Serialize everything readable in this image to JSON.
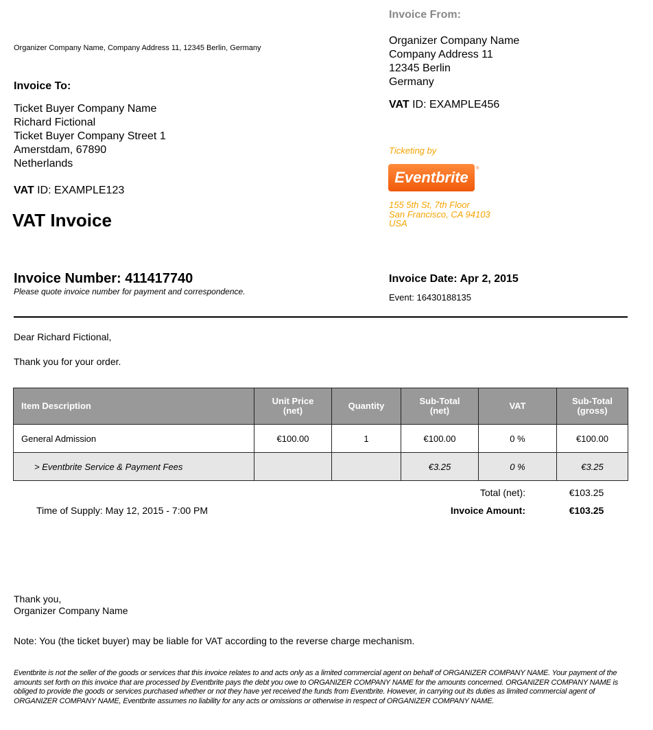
{
  "organizer_line": "Organizer Company Name, Company Address 11, 12345 Berlin, Germany",
  "from": {
    "title": "Invoice From:",
    "lines": [
      "Organizer Company Name",
      "Company Address 11",
      "12345 Berlin",
      "Germany"
    ],
    "vat_label": "VAT",
    "vat_value": " ID: EXAMPLE456"
  },
  "ticketing": {
    "label": "Ticketing by",
    "logo": "Eventbrite",
    "address": [
      "155 5th St, 7th Floor",
      "San Francisco, CA 94103",
      "USA"
    ],
    "color": "#f5a300"
  },
  "to": {
    "title": "Invoice To:",
    "lines": [
      "Ticket Buyer Company Name",
      "Richard Fictional",
      "Ticket Buyer Company Street 1",
      "Amerstdam, 67890",
      "Netherlands"
    ],
    "vat_label": "VAT",
    "vat_value": " ID: EXAMPLE123"
  },
  "doc_title": "VAT Invoice",
  "invoice_number": "Invoice Number: 411417740",
  "invoice_note": "Please quote invoice number for payment and correspondence.",
  "invoice_date": "Invoice Date: Apr 2, 2015",
  "event": "Event: 16430188135",
  "greeting": "Dear Richard Fictional,",
  "thanks_order": "Thank you for your order.",
  "table": {
    "headers": [
      "Item Description",
      "Unit Price\n(net)",
      "Quantity",
      "Sub-Total\n(net)",
      "VAT",
      "Sub-Total\n(gross)"
    ],
    "header_lines": [
      [
        "Item Description"
      ],
      [
        "Unit Price",
        "(net)"
      ],
      [
        "Quantity"
      ],
      [
        "Sub-Total",
        "(net)"
      ],
      [
        "VAT"
      ],
      [
        "Sub-Total",
        "(gross)"
      ]
    ],
    "rows": [
      [
        "General Admission",
        "€100.00",
        "1",
        "€100.00",
        "0 %",
        "€100.00"
      ],
      [
        "> Eventbrite Service & Payment Fees",
        "",
        "",
        "€3.25",
        "0 %",
        "€3.25"
      ]
    ]
  },
  "totals": {
    "net_label": "Total (net):",
    "net_value": "€103.25",
    "amount_label": "Invoice Amount:",
    "amount_value": "€103.25"
  },
  "time_of_supply": "Time of Supply: May 12, 2015 - 7:00 PM",
  "closing": [
    "Thank you,",
    "Organizer Company Name"
  ],
  "note": "Note: You (the ticket buyer) may be liable for VAT according to the reverse charge mechanism.",
  "disclaimer": "Eventbrite is not the seller of the goods or services that this invoice relates to and acts only as a limited commercial agent on behalf of ORGANIZER COMPANY NAME.  Your payment of the amounts set forth on this invoice that are processed by Eventbrite pays the debt you owe to ORGANIZER COMPANY NAME for the amounts concerned.  ORGANIZER COMPANY NAME is obliged to provide the goods or services purchased whether or not they have yet received the funds from Eventbrite.  However, in carrying out its duties as limited commercial agent of ORGANIZER COMPANY NAME, Eventbrite assumes no liability for any acts or omissions or otherwise in respect of ORGANIZER COMPANY NAME."
}
